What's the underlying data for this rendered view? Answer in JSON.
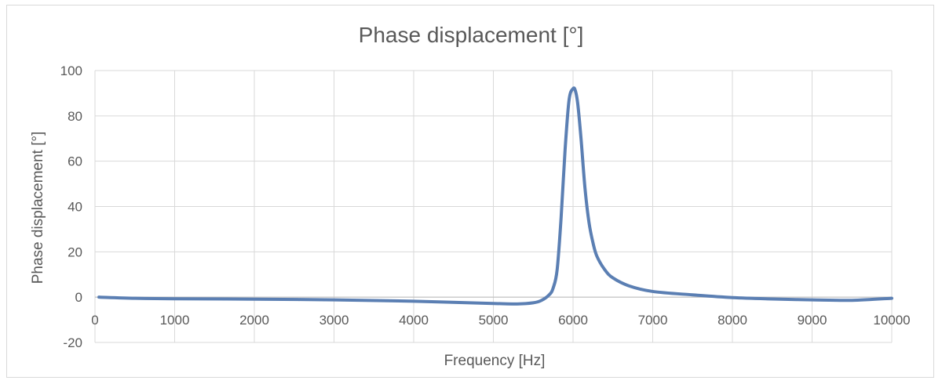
{
  "chart_data": {
    "type": "line",
    "title": "Phase displacement [°]",
    "xlabel": "Frequency [Hz]",
    "ylabel": "Phase displacement [°]",
    "xlim": [
      0,
      10000
    ],
    "ylim": [
      -20,
      100
    ],
    "xticks": [
      0,
      1000,
      2000,
      3000,
      4000,
      5000,
      6000,
      7000,
      8000,
      9000,
      10000
    ],
    "yticks": [
      -20,
      0,
      20,
      40,
      60,
      80,
      100
    ],
    "grid": true,
    "legend": "none",
    "colors": {
      "line": "#5b7fb3",
      "grid": "#d9d9d9",
      "text": "#595959"
    },
    "series": [
      {
        "x": [
          50,
          500,
          1000,
          2000,
          3000,
          4000,
          5000,
          5300,
          5500,
          5600,
          5700,
          5750,
          5800,
          5850,
          5900,
          5950,
          6000,
          6030,
          6060,
          6100,
          6150,
          6200,
          6250,
          6300,
          6400,
          6500,
          6700,
          7000,
          7500,
          8000,
          8500,
          9000,
          9500,
          10000
        ],
        "y": [
          0,
          -0.5,
          -0.7,
          -0.9,
          -1.2,
          -1.8,
          -2.8,
          -3.0,
          -2.5,
          -1.5,
          1,
          4,
          12,
          35,
          65,
          87,
          92,
          91,
          85,
          70,
          48,
          33,
          24,
          18,
          12,
          8.5,
          5,
          2.5,
          1,
          -0.2,
          -0.8,
          -1.2,
          -1.4,
          -0.5
        ]
      }
    ]
  }
}
